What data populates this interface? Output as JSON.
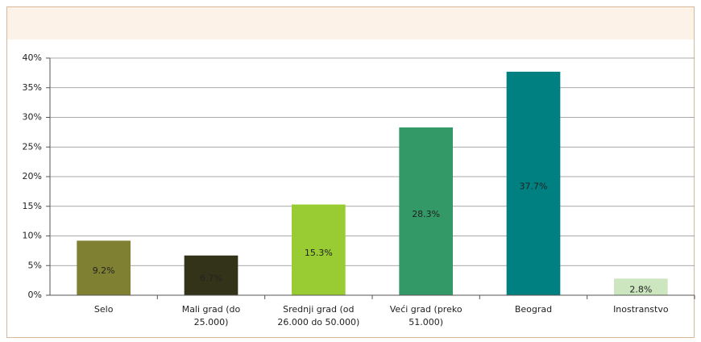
{
  "chart_data": {
    "type": "bar",
    "categories": [
      "Selo",
      "Mali grad (do 25.000)",
      "Srednji grad (od 26.000 do 50.000)",
      "Veći grad (preko 51.000)",
      "Beograd",
      "Inostranstvo"
    ],
    "values": [
      9.2,
      6.7,
      15.3,
      28.3,
      37.7,
      2.8
    ],
    "value_labels": [
      "9.2%",
      "6.7%",
      "15.3%",
      "28.3%",
      "37.7%",
      "2.8%"
    ],
    "colors": [
      "#808033",
      "#333319",
      "#99cc33",
      "#339966",
      "#008080",
      "#cce6c0"
    ],
    "ylim": [
      0,
      40
    ],
    "yticks": [
      {
        "value": 0,
        "label": "0%"
      },
      {
        "value": 5,
        "label": "5%"
      },
      {
        "value": 10,
        "label": "10%"
      },
      {
        "value": 15,
        "label": "15%"
      },
      {
        "value": 20,
        "label": "20%"
      },
      {
        "value": 25,
        "label": "25%"
      },
      {
        "value": 30,
        "label": "30%"
      },
      {
        "value": 35,
        "label": "35%"
      },
      {
        "value": 40,
        "label": "40%"
      }
    ],
    "grid": true
  }
}
